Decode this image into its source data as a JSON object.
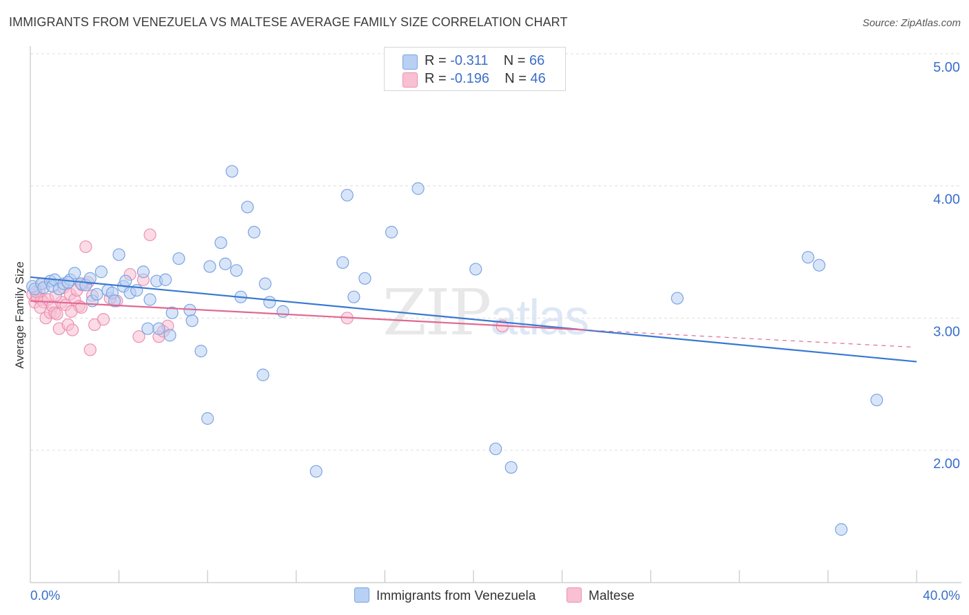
{
  "title": "IMMIGRANTS FROM VENEZUELA VS MALTESE AVERAGE FAMILY SIZE CORRELATION CHART",
  "source": "Source: ZipAtlas.com",
  "watermark": {
    "zip": "ZIP",
    "atlas": "atlas"
  },
  "legend": {
    "rows": [
      {
        "r_label": "R = ",
        "r_value": "-0.311",
        "n_label": "N = ",
        "n_value": "66"
      },
      {
        "r_label": "R = ",
        "r_value": "-0.196",
        "n_label": "N = ",
        "n_value": "46"
      }
    ]
  },
  "colors": {
    "blue_fill": "#b8d0f4",
    "blue_stroke": "#7aa3e0",
    "blue_line": "#3878d0",
    "pink_fill": "#f8c0d2",
    "pink_stroke": "#ec8fae",
    "pink_line": "#e06890",
    "axis_text": "#3a6fc9"
  },
  "chart_data": {
    "type": "scatter",
    "title": "IMMIGRANTS FROM VENEZUELA VS MALTESE AVERAGE FAMILY SIZE CORRELATION CHART",
    "xlabel": "",
    "ylabel": "Average Family Size",
    "xlim": [
      0,
      40
    ],
    "ylim": [
      1.0,
      5.2
    ],
    "x_ticks_labels": [
      "0.0%",
      "40.0%"
    ],
    "y_ticks": [
      2.0,
      3.0,
      4.0,
      5.0
    ],
    "y_tick_labels": [
      "2.00",
      "3.00",
      "4.00",
      "5.00"
    ],
    "series": [
      {
        "name": "Immigrants from Venezuela",
        "color": "blue",
        "trend": {
          "x0": 0,
          "y0": 3.31,
          "x1": 40,
          "y1": 2.67,
          "dashed_from": null
        },
        "points": [
          [
            0.1,
            3.24
          ],
          [
            0.2,
            3.22
          ],
          [
            0.5,
            3.26
          ],
          [
            0.6,
            3.23
          ],
          [
            0.9,
            3.28
          ],
          [
            1.0,
            3.24
          ],
          [
            1.1,
            3.29
          ],
          [
            1.3,
            3.22
          ],
          [
            1.5,
            3.26
          ],
          [
            1.8,
            3.29
          ],
          [
            2.0,
            3.34
          ],
          [
            2.3,
            3.26
          ],
          [
            2.5,
            3.25
          ],
          [
            2.8,
            3.13
          ],
          [
            3.0,
            3.18
          ],
          [
            3.2,
            3.35
          ],
          [
            3.5,
            3.21
          ],
          [
            3.7,
            3.19
          ],
          [
            3.8,
            3.13
          ],
          [
            4.0,
            3.48
          ],
          [
            4.2,
            3.24
          ],
          [
            4.3,
            3.28
          ],
          [
            4.5,
            3.19
          ],
          [
            4.8,
            3.21
          ],
          [
            5.1,
            3.35
          ],
          [
            5.3,
            2.92
          ],
          [
            5.4,
            3.14
          ],
          [
            5.7,
            3.28
          ],
          [
            5.8,
            2.92
          ],
          [
            6.1,
            3.29
          ],
          [
            6.3,
            2.87
          ],
          [
            6.4,
            3.04
          ],
          [
            6.7,
            3.45
          ],
          [
            7.2,
            3.06
          ],
          [
            7.3,
            2.98
          ],
          [
            7.7,
            2.75
          ],
          [
            8.0,
            2.24
          ],
          [
            8.1,
            3.39
          ],
          [
            8.6,
            3.57
          ],
          [
            8.8,
            3.41
          ],
          [
            9.1,
            4.11
          ],
          [
            9.3,
            3.36
          ],
          [
            9.5,
            3.16
          ],
          [
            9.8,
            3.84
          ],
          [
            10.1,
            3.65
          ],
          [
            10.5,
            2.57
          ],
          [
            10.6,
            3.26
          ],
          [
            10.8,
            3.12
          ],
          [
            11.4,
            3.05
          ],
          [
            12.9,
            1.84
          ],
          [
            14.1,
            3.42
          ],
          [
            14.3,
            3.93
          ],
          [
            14.6,
            3.16
          ],
          [
            15.1,
            3.3
          ],
          [
            16.3,
            3.65
          ],
          [
            17.5,
            3.98
          ],
          [
            20.1,
            3.37
          ],
          [
            21.0,
            2.01
          ],
          [
            21.7,
            1.87
          ],
          [
            29.2,
            3.15
          ],
          [
            35.1,
            3.46
          ],
          [
            35.6,
            3.4
          ],
          [
            38.2,
            2.38
          ],
          [
            36.6,
            1.4
          ],
          [
            1.7,
            3.27
          ],
          [
            2.7,
            3.3
          ]
        ]
      },
      {
        "name": "Maltese",
        "color": "pink",
        "trend": {
          "x0": 0,
          "y0": 3.13,
          "x1": 25,
          "y1": 2.91,
          "dashed_to_x": 40,
          "dashed_to_y": 2.78
        },
        "points": [
          [
            0.1,
            3.18
          ],
          [
            0.2,
            3.12
          ],
          [
            0.3,
            3.16
          ],
          [
            0.4,
            3.21
          ],
          [
            0.5,
            3.14
          ],
          [
            0.6,
            3.12
          ],
          [
            0.7,
            3.0
          ],
          [
            0.8,
            3.14
          ],
          [
            0.9,
            3.04
          ],
          [
            1.0,
            3.09
          ],
          [
            1.1,
            3.04
          ],
          [
            1.2,
            3.03
          ],
          [
            1.3,
            2.92
          ],
          [
            1.4,
            3.12
          ],
          [
            1.5,
            3.23
          ],
          [
            1.6,
            3.1
          ],
          [
            1.7,
            2.95
          ],
          [
            1.8,
            3.18
          ],
          [
            1.9,
            2.91
          ],
          [
            2.0,
            3.14
          ],
          [
            2.1,
            3.21
          ],
          [
            2.2,
            3.09
          ],
          [
            2.3,
            3.08
          ],
          [
            2.5,
            3.54
          ],
          [
            2.6,
            3.27
          ],
          [
            2.7,
            2.76
          ],
          [
            2.8,
            3.17
          ],
          [
            2.9,
            2.95
          ],
          [
            3.3,
            2.99
          ],
          [
            3.9,
            3.13
          ],
          [
            4.5,
            3.33
          ],
          [
            4.9,
            2.86
          ],
          [
            5.1,
            3.29
          ],
          [
            5.4,
            3.63
          ],
          [
            5.8,
            2.86
          ],
          [
            6.0,
            2.9
          ],
          [
            6.2,
            2.94
          ],
          [
            14.3,
            3.0
          ],
          [
            21.3,
            2.94
          ],
          [
            0.25,
            3.2
          ],
          [
            0.55,
            3.26
          ],
          [
            1.15,
            3.17
          ],
          [
            2.35,
            3.25
          ],
          [
            3.6,
            3.15
          ],
          [
            0.45,
            3.08
          ],
          [
            1.85,
            3.05
          ]
        ]
      }
    ]
  },
  "bottom_legend": [
    {
      "label": "Immigrants from Venezuela",
      "color": "blue"
    },
    {
      "label": "Maltese",
      "color": "pink"
    }
  ]
}
